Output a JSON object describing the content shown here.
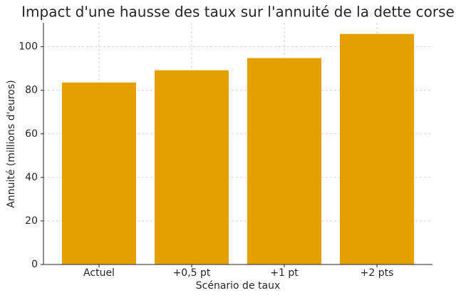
{
  "chart_data": {
    "type": "bar",
    "title": "Impact d'une hausse des taux sur l'annuité de la dette corse",
    "xlabel": "Scénario de taux",
    "ylabel": "Annuité (millions d'euros)",
    "categories": [
      "Actuel",
      "+0,5 pt",
      "+1 pt",
      "+2 pts"
    ],
    "values": [
      83.6,
      89.2,
      94.8,
      105.9
    ],
    "color": "#e49f00",
    "ylim": [
      0,
      111
    ],
    "yticks": [
      0,
      20,
      40,
      60,
      80,
      100
    ],
    "grid": true
  }
}
